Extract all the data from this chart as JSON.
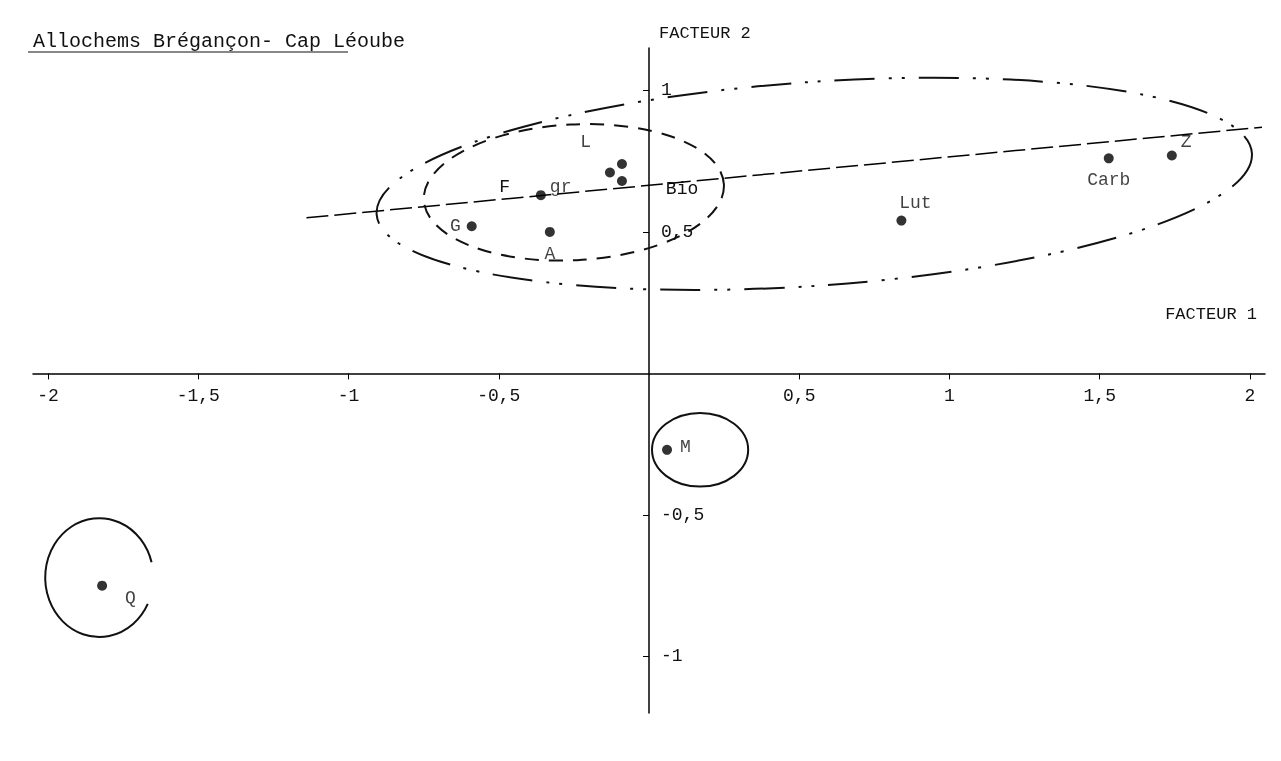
{
  "chart_data": {
    "type": "scatter",
    "title": "Allochems Brégançon- Cap Léoube",
    "xlabel": "FACTEUR 1",
    "ylabel": "FACTEUR 2",
    "xlim": [
      -2.05,
      2.05
    ],
    "ylim": [
      -1.2,
      1.15
    ],
    "xticks": [
      -2,
      {
        "value": -1.5,
        "label": "-1,5"
      },
      -1,
      {
        "value": -0.5,
        "label": "-0,5"
      },
      {
        "value": 0.5,
        "label": "0,5"
      },
      1,
      {
        "value": 1.5,
        "label": "1,5"
      },
      2
    ],
    "yticks": [
      -1,
      {
        "value": -0.5,
        "label": "-0,5"
      },
      {
        "value": 0.5,
        "label": "0,5"
      },
      1
    ],
    "marker": "circle",
    "grid": false,
    "series": [
      {
        "color": "#000000",
        "x": [
          -0.59,
          -0.36,
          -0.33,
          -0.13,
          -0.09,
          -0.09,
          0.84,
          1.53,
          1.74,
          0.06,
          -1.82
        ],
        "values": [
          0.52,
          0.63,
          0.5,
          0.71,
          0.74,
          0.68,
          0.54,
          0.76,
          0.77,
          -0.27,
          -0.75
        ],
        "value_labels": [
          "G",
          "gr",
          "A",
          null,
          "L",
          null,
          "Lut",
          "Carb",
          "Z",
          "M",
          "Q"
        ]
      },
      {
        "type": "line",
        "color": "#000000",
        "line_style": "dashed",
        "marker": "none",
        "x": [
          -1.14,
          2.04
        ],
        "values": [
          0.55,
          0.87
        ]
      }
    ],
    "annotations": [
      "F",
      "Bio"
    ]
  }
}
